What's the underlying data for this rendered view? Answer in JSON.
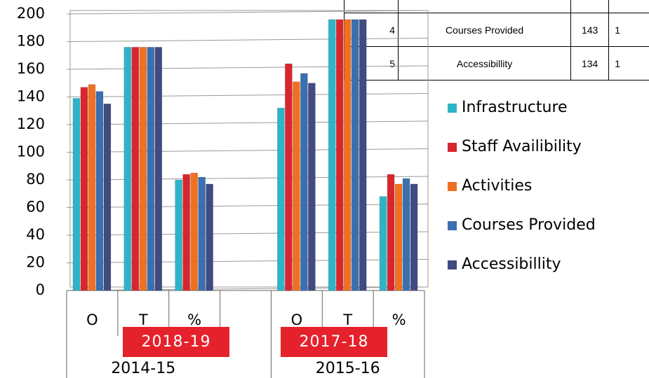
{
  "chart_data": {
    "type": "bar",
    "categories": [
      "O",
      "T",
      "%",
      null,
      "O",
      "T",
      "%"
    ],
    "group_labels": [
      "2014-15",
      "2015-16"
    ],
    "series": [
      {
        "name": "Infrastructure",
        "color": "#2eb4c8",
        "values": [
          139,
          176,
          80,
          null,
          132,
          196,
          68
        ]
      },
      {
        "name": "Staff Availibility",
        "color": "#d9262e",
        "values": [
          147,
          176,
          84,
          null,
          164,
          196,
          84
        ]
      },
      {
        "name": "Activities",
        "color": "#f07022",
        "values": [
          149,
          176,
          85,
          null,
          151,
          196,
          77
        ]
      },
      {
        "name": "Courses Provided",
        "color": "#3a6fb0",
        "values": [
          144,
          176,
          82,
          null,
          157,
          196,
          81
        ]
      },
      {
        "name": "Accessibillity",
        "color": "#414a82",
        "values": [
          135,
          176,
          77,
          null,
          150,
          196,
          77
        ]
      }
    ],
    "ylim": [
      0,
      200
    ],
    "yticks": [
      0,
      20,
      40,
      60,
      80,
      100,
      120,
      140,
      160,
      180,
      200
    ],
    "grid": true
  },
  "table": {
    "rows": [
      [
        "4",
        "Courses Provided",
        "143",
        "1"
      ],
      [
        "5",
        "Accessibillity",
        "134",
        "1"
      ]
    ]
  },
  "badges": [
    "2018-19",
    "2017-18"
  ]
}
